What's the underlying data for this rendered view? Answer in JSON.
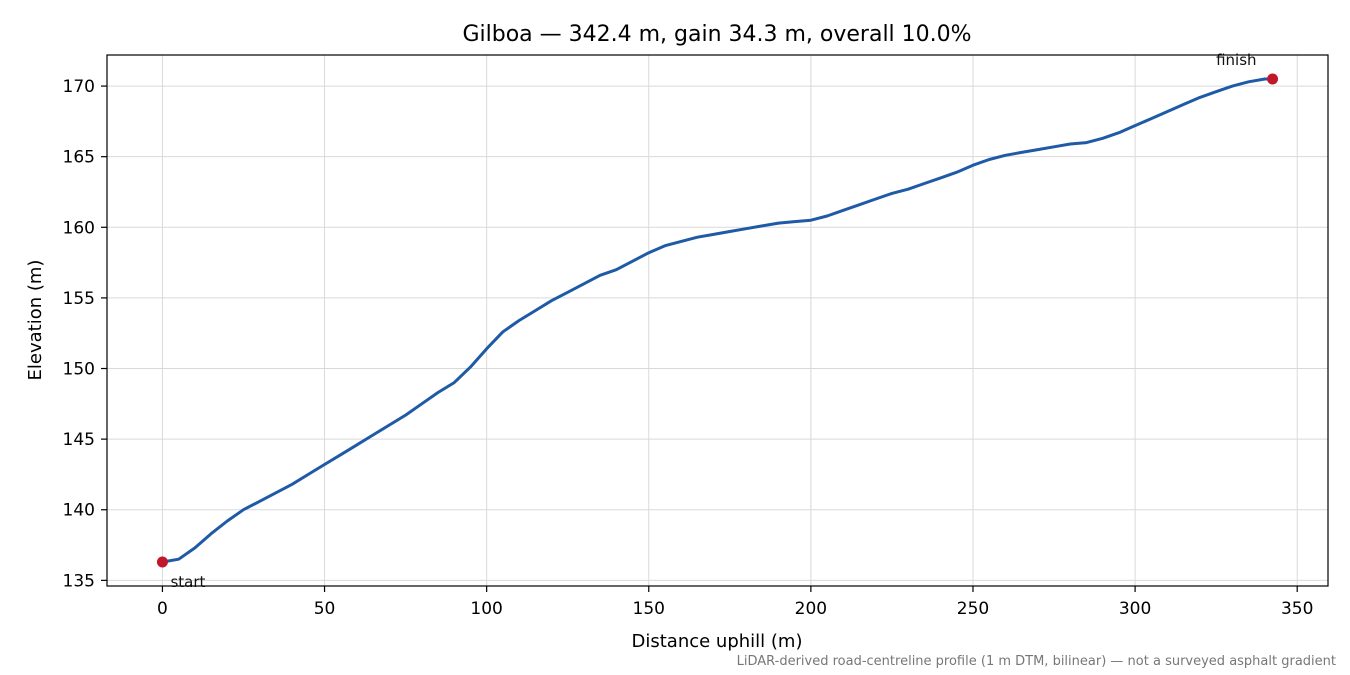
{
  "chart_data": {
    "type": "line",
    "title": "Gilboa — 342.4 m, gain 34.3 m, overall 10.0%",
    "xlabel": "Distance uphill (m)",
    "ylabel": "Elevation (m)",
    "xlim": [
      -17.1,
      359.5
    ],
    "ylim": [
      134.6,
      172.2
    ],
    "x_ticks": [
      0,
      50,
      100,
      150,
      200,
      250,
      300,
      350
    ],
    "y_ticks": [
      135,
      140,
      145,
      150,
      155,
      160,
      165,
      170
    ],
    "grid": true,
    "line_color": "#1f5aa6",
    "marker_color": "#c0182a",
    "series": [
      {
        "x": [
          0,
          5,
          10,
          15,
          20,
          25,
          30,
          35,
          40,
          45,
          50,
          55,
          60,
          65,
          70,
          75,
          80,
          85,
          90,
          95,
          100,
          105,
          110,
          115,
          120,
          125,
          130,
          135,
          140,
          145,
          150,
          155,
          160,
          165,
          170,
          175,
          180,
          185,
          190,
          195,
          200,
          205,
          210,
          215,
          220,
          225,
          230,
          235,
          240,
          245,
          250,
          255,
          260,
          265,
          270,
          275,
          280,
          285,
          290,
          295,
          300,
          305,
          310,
          315,
          320,
          325,
          330,
          335,
          340,
          342.4
        ],
        "y": [
          136.3,
          136.5,
          137.3,
          138.3,
          139.2,
          140.0,
          140.6,
          141.2,
          141.8,
          142.5,
          143.2,
          143.9,
          144.6,
          145.3,
          146.0,
          146.7,
          147.5,
          148.3,
          149.0,
          150.1,
          151.4,
          152.6,
          153.4,
          154.1,
          154.8,
          155.4,
          156.0,
          156.6,
          157.0,
          157.6,
          158.2,
          158.7,
          159.0,
          159.3,
          159.5,
          159.7,
          159.9,
          160.1,
          160.3,
          160.4,
          160.5,
          160.8,
          161.2,
          161.6,
          162.0,
          162.4,
          162.7,
          163.1,
          163.5,
          163.9,
          164.4,
          164.8,
          165.1,
          165.3,
          165.5,
          165.7,
          165.9,
          166.0,
          166.3,
          166.7,
          167.2,
          167.7,
          168.2,
          168.7,
          169.2,
          169.6,
          170.0,
          170.3,
          170.5,
          170.5
        ]
      }
    ],
    "markers": [
      {
        "x": 0,
        "y": 136.3,
        "label": "start"
      },
      {
        "x": 342.4,
        "y": 170.5,
        "label": "finish"
      }
    ],
    "footnote": "LiDAR-derived road-centreline profile (1 m DTM, bilinear) — not a surveyed asphalt gradient"
  }
}
